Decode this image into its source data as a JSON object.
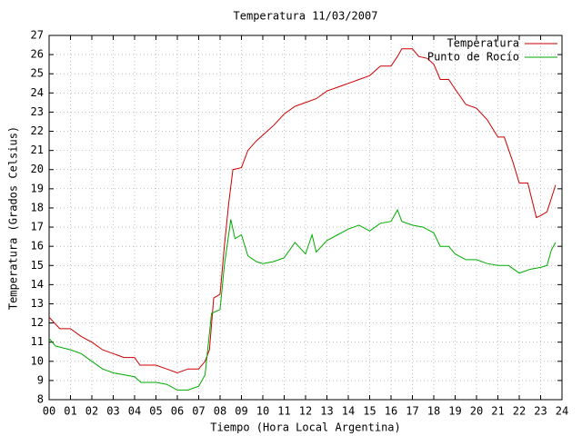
{
  "chart_data": {
    "type": "line",
    "title": "Temperatura 11/03/2007",
    "x_label": "Tiempo (Hora Local Argentina)",
    "y_label": "Temperatura (Grados Celsius)",
    "xlim": [
      0,
      24
    ],
    "ylim": [
      8,
      27
    ],
    "xticks": [
      {
        "value": 0,
        "label": "00"
      },
      {
        "value": 1,
        "label": "01"
      },
      {
        "value": 2,
        "label": "02"
      },
      {
        "value": 3,
        "label": "03"
      },
      {
        "value": 4,
        "label": "04"
      },
      {
        "value": 5,
        "label": "05"
      },
      {
        "value": 6,
        "label": "06"
      },
      {
        "value": 7,
        "label": "07"
      },
      {
        "value": 8,
        "label": "08"
      },
      {
        "value": 9,
        "label": "09"
      },
      10,
      11,
      12,
      13,
      14,
      15,
      16,
      17,
      18,
      19,
      20,
      21,
      22,
      23,
      24
    ],
    "yticks": [
      8,
      9,
      10,
      11,
      12,
      13,
      14,
      15,
      16,
      17,
      18,
      19,
      20,
      21,
      22,
      23,
      24,
      25,
      26,
      27
    ],
    "grid": true,
    "legend": "top right",
    "series": [
      {
        "name": "Temperatura",
        "color": "#cc0000",
        "x": [
          0,
          0.25,
          0.5,
          1,
          1.5,
          2,
          2.5,
          3,
          3.5,
          4,
          4.25,
          5,
          5.5,
          6,
          6.5,
          7,
          7.3,
          7.5,
          7.7,
          8,
          8.2,
          8.4,
          8.6,
          9,
          9.3,
          9.7,
          10,
          10.5,
          11,
          11.5,
          12,
          12.5,
          13,
          13.5,
          14,
          14.5,
          15,
          15.5,
          16,
          16.3,
          16.5,
          17,
          17.3,
          17.7,
          18,
          18.3,
          18.7,
          19,
          19.5,
          20,
          20.5,
          21,
          21.3,
          21.7,
          22,
          22.4,
          22.8,
          23,
          23.3,
          23.5,
          23.7
        ],
        "values": [
          12.3,
          12.0,
          11.7,
          11.7,
          11.3,
          11.0,
          10.6,
          10.4,
          10.2,
          10.2,
          9.8,
          9.8,
          9.6,
          9.4,
          9.6,
          9.6,
          10.0,
          10.6,
          13.3,
          13.5,
          16,
          18.2,
          20,
          20.1,
          21,
          21.5,
          21.8,
          22.3,
          22.9,
          23.3,
          23.5,
          23.7,
          24.1,
          24.3,
          24.5,
          24.7,
          24.9,
          25.4,
          25.4,
          25.9,
          26.3,
          26.3,
          25.9,
          25.8,
          25.5,
          24.7,
          24.7,
          24.2,
          23.4,
          23.2,
          22.6,
          21.7,
          21.7,
          20.4,
          19.3,
          19.3,
          17.5,
          17.6,
          17.8,
          18.5,
          19.2
        ]
      },
      {
        "name": "Punto de Rocío",
        "color": "#00aa00",
        "x": [
          0,
          0.3,
          1,
          1.5,
          2,
          2.5,
          3,
          3.5,
          4,
          4.3,
          5,
          5.5,
          6,
          6.5,
          7,
          7.3,
          7.6,
          8,
          8.2,
          8.5,
          8.7,
          9,
          9.3,
          9.7,
          10,
          10.5,
          11,
          11.5,
          12,
          12.3,
          12.5,
          13,
          13.5,
          14,
          14.5,
          15,
          15.5,
          16,
          16.3,
          16.5,
          17,
          17.5,
          18,
          18.3,
          18.7,
          19,
          19.5,
          20,
          20.5,
          21,
          21.5,
          22,
          22.5,
          23,
          23.3,
          23.5,
          23.7
        ],
        "values": [
          11.2,
          10.8,
          10.6,
          10.4,
          10.0,
          9.6,
          9.4,
          9.3,
          9.2,
          8.9,
          8.9,
          8.8,
          8.5,
          8.5,
          8.7,
          9.3,
          12.5,
          12.7,
          15,
          17.4,
          16.4,
          16.6,
          15.5,
          15.2,
          15.1,
          15.2,
          15.4,
          16.2,
          15.6,
          16.6,
          15.7,
          16.3,
          16.6,
          16.9,
          17.1,
          16.8,
          17.2,
          17.3,
          17.9,
          17.3,
          17.1,
          17.0,
          16.7,
          16.0,
          16.0,
          15.6,
          15.3,
          15.3,
          15.1,
          15.0,
          15.0,
          14.6,
          14.8,
          14.9,
          15.0,
          15.8,
          16.2
        ]
      }
    ]
  }
}
